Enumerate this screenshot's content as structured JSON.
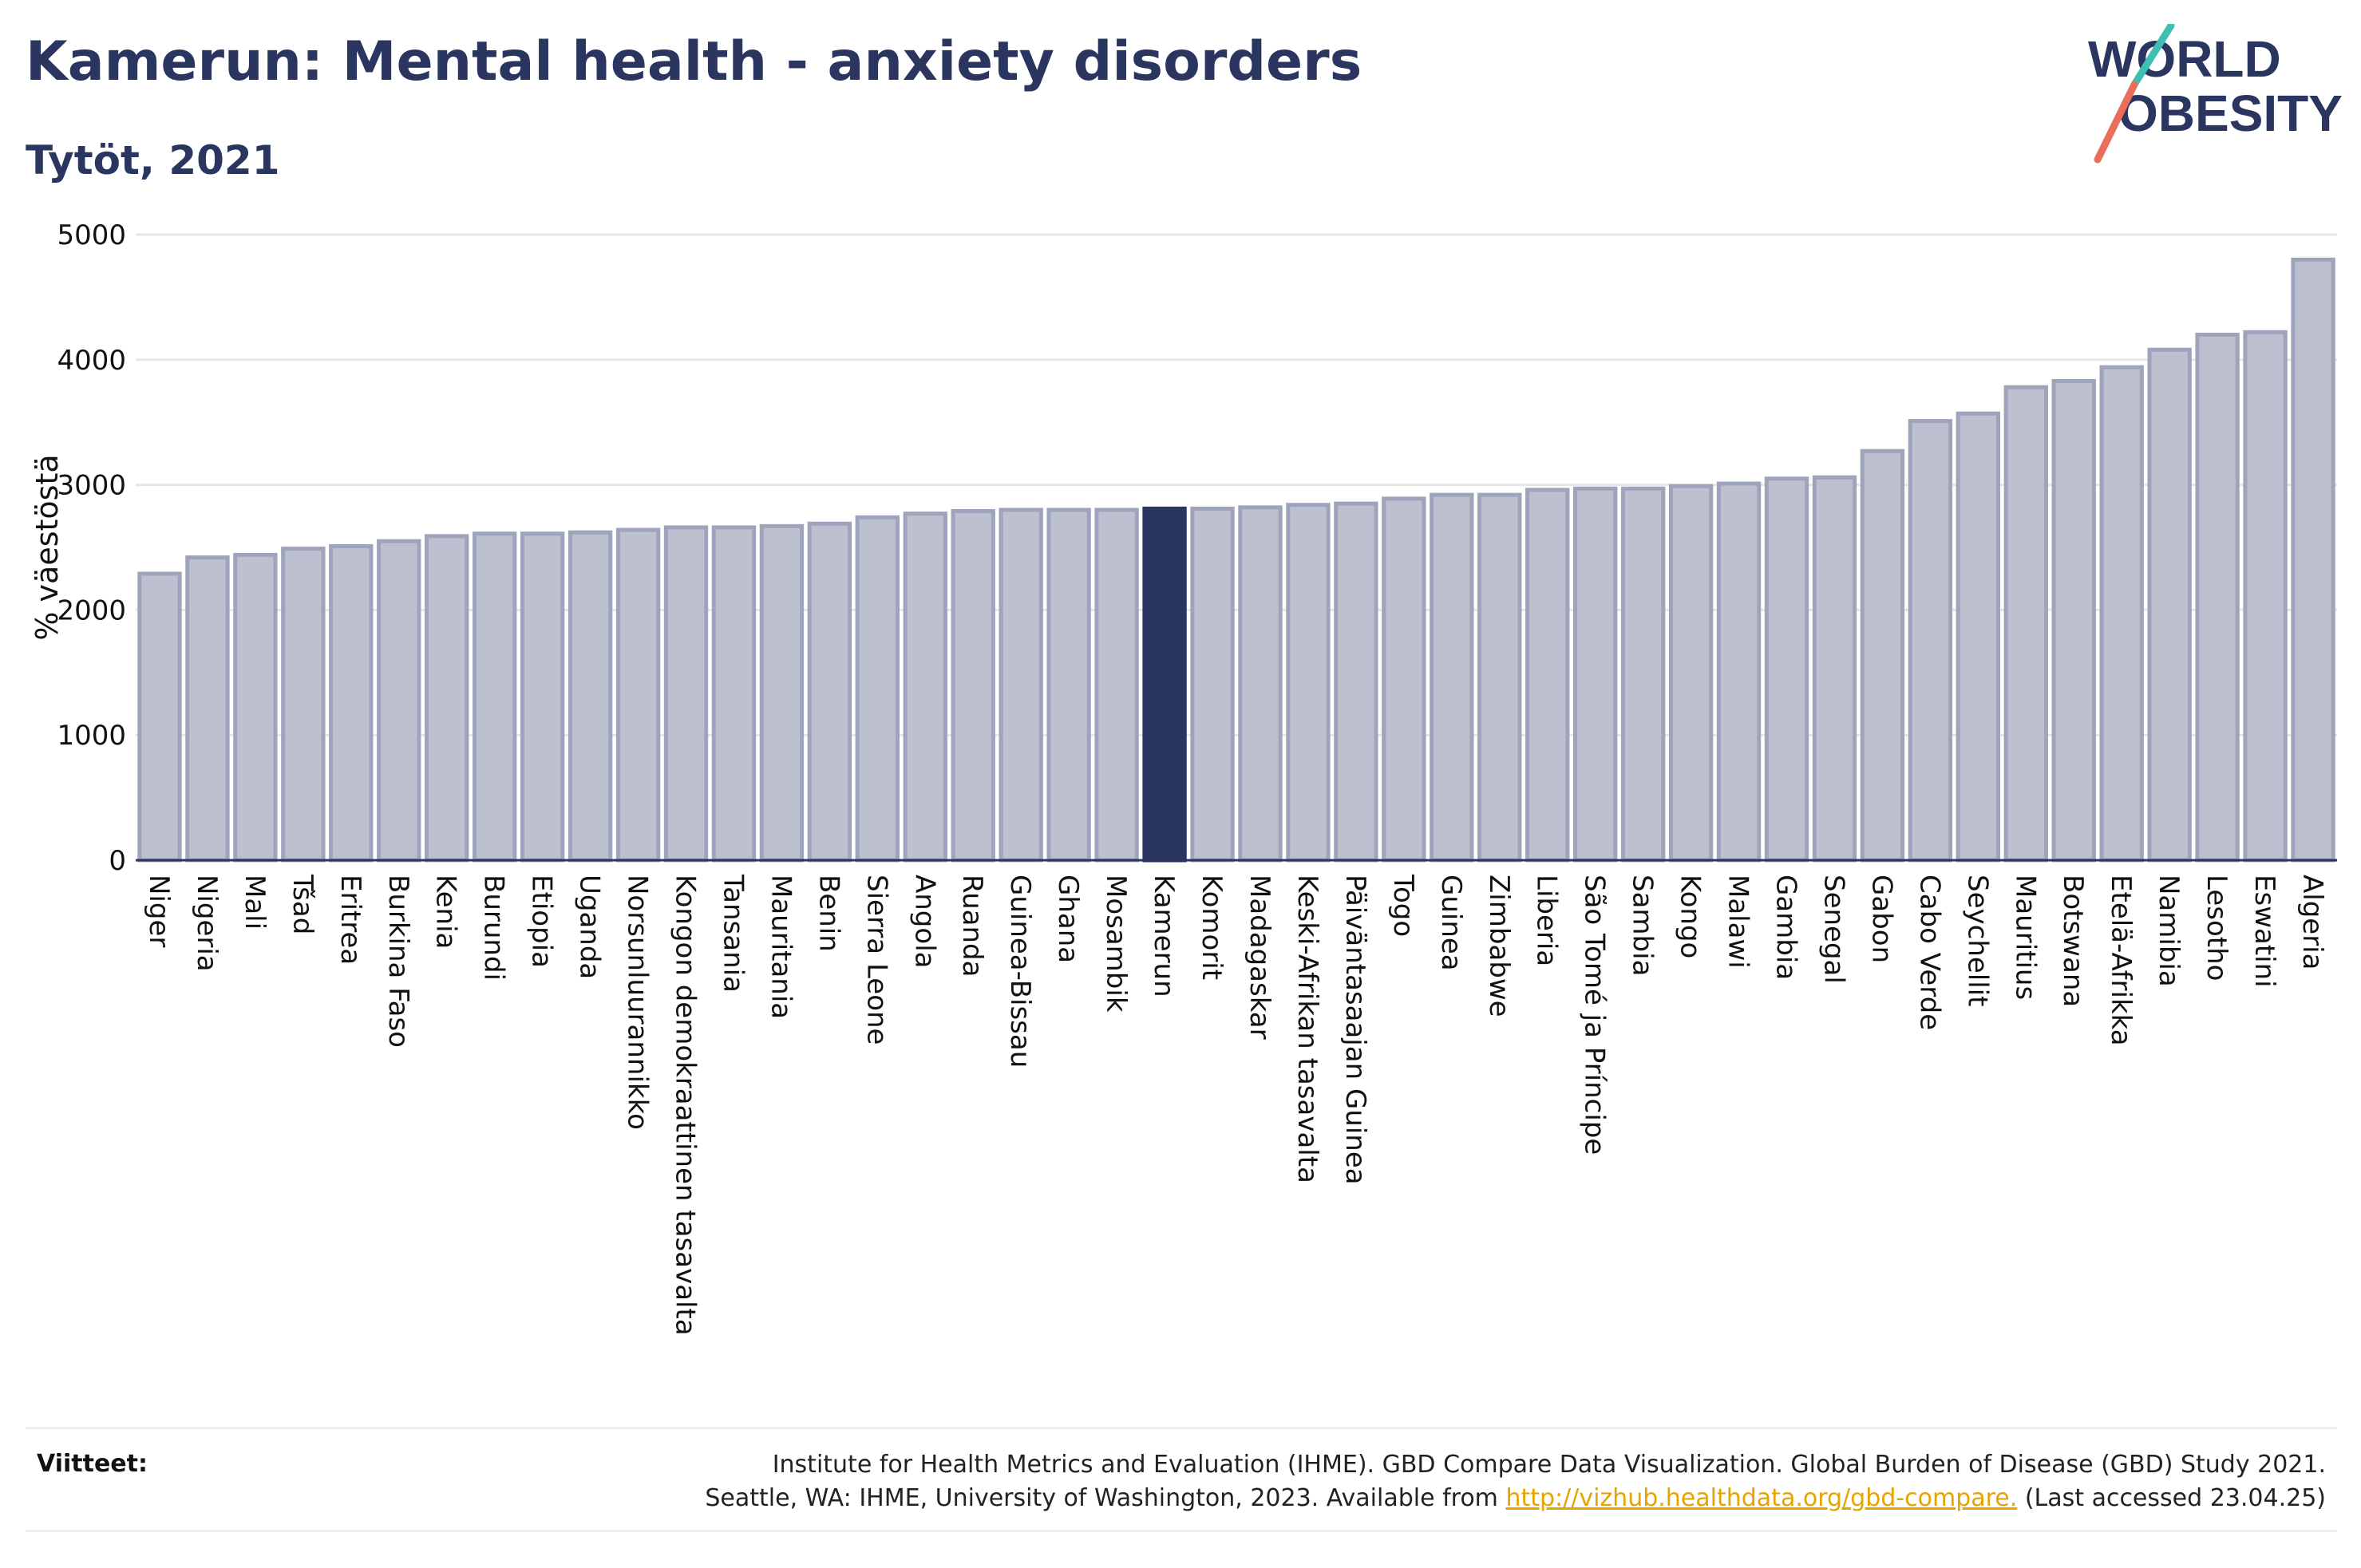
{
  "header": {
    "title": "Kamerun: Mental health - anxiety disorders",
    "subtitle": "Tytöt, 2021"
  },
  "logo": {
    "line1": "WORLD",
    "line2": "OBESITY",
    "colors": {
      "text": "#2a3560",
      "accent_teal": "#3fbfb3",
      "accent_coral": "#e8705a"
    }
  },
  "colors": {
    "bar_fill": "#bcc0cf",
    "bar_stroke": "#9ea4bb",
    "highlight": "#2a3560",
    "grid": "#e6e6e6"
  },
  "chart_data": {
    "type": "bar",
    "ylabel": "% väestöstä",
    "ylim": [
      0,
      5000
    ],
    "yticks": [
      0,
      1000,
      2000,
      3000,
      4000,
      5000
    ],
    "grid": true,
    "highlight": "Kamerun",
    "categories": [
      "Niger",
      "Nigeria",
      "Mali",
      "Tšad",
      "Eritrea",
      "Burkina Faso",
      "Kenia",
      "Burundi",
      "Etiopia",
      "Uganda",
      "Norsunluurannikko",
      "Kongon demokraattinen tasavalta",
      "Tansania",
      "Mauritania",
      "Benin",
      "Sierra Leone",
      "Angola",
      "Ruanda",
      "Guinea-Bissau",
      "Ghana",
      "Mosambik",
      "Kamerun",
      "Komorit",
      "Madagaskar",
      "Keski-Afrikan tasavalta",
      "Päiväntasaajan Guinea",
      "Togo",
      "Guinea",
      "Zimbabwe",
      "Liberia",
      "São Tomé ja Príncipe",
      "Sambia",
      "Kongo",
      "Malawi",
      "Gambia",
      "Senegal",
      "Gabon",
      "Cabo Verde",
      "Seychellit",
      "Mauritius",
      "Botswana",
      "Etelä-Afrikka",
      "Namibia",
      "Lesotho",
      "Eswatini",
      "Algeria"
    ],
    "values": [
      2290,
      2420,
      2440,
      2490,
      2510,
      2550,
      2590,
      2610,
      2610,
      2620,
      2640,
      2660,
      2660,
      2670,
      2690,
      2740,
      2770,
      2790,
      2800,
      2800,
      2800,
      2810,
      2810,
      2820,
      2840,
      2850,
      2890,
      2920,
      2920,
      2960,
      2970,
      2970,
      2990,
      3010,
      3050,
      3060,
      3270,
      3510,
      3570,
      3780,
      3830,
      3940,
      4080,
      4200,
      4220,
      4800
    ]
  },
  "footer": {
    "label": "Viitteet:",
    "line1": "Institute for Health Metrics and Evaluation (IHME). GBD Compare Data Visualization. Global Burden of Disease (GBD) Study 2021.",
    "line2_prefix": "Seattle, WA: IHME, University of Washington, 2023. Available from ",
    "link": "http://vizhub.healthdata.org/gbd-compare.",
    "line2_suffix": " (Last accessed 23.04.25)"
  }
}
